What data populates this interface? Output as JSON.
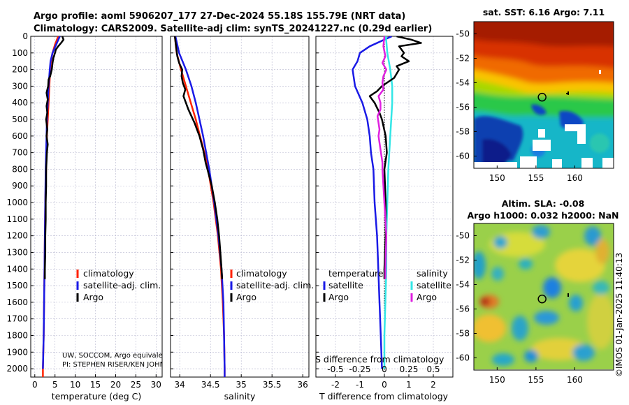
{
  "header": {
    "line1": "Argo profile: aoml 5906207_177 27-Dec-2024 55.18S 155.79E (NRT data)",
    "line2": "Climatology: CARS2009. Satellite-adj clim: synTS_20241227.nc (0.29d earlier)"
  },
  "colors": {
    "climatology": "#ff2200",
    "satellite": "#1a1ae6",
    "argo": "#000000",
    "sal_satellite": "#33e6e6",
    "sal_argo": "#e020e0",
    "grid": "#b8b8d0"
  },
  "chart_data": [
    {
      "type": "line",
      "name": "temperature-profile",
      "xlabel": "temperature (deg C)",
      "ylabel": "",
      "xlim": [
        -1,
        31.5
      ],
      "ylim": [
        2050,
        0
      ],
      "x_ticks": [
        0,
        5,
        10,
        15,
        20,
        25,
        30
      ],
      "x_tick_labels": [
        "0",
        "5",
        "10",
        "15",
        "20",
        "25",
        "30"
      ],
      "y_ticks": [
        0,
        100,
        200,
        300,
        400,
        500,
        600,
        700,
        800,
        900,
        1000,
        1100,
        1200,
        1300,
        1400,
        1500,
        1600,
        1700,
        1800,
        1900,
        2000
      ],
      "y_tick_labels": [
        "0",
        "100",
        "200",
        "300",
        "400",
        "500",
        "600",
        "700",
        "800",
        "900",
        "1000",
        "1100",
        "1200",
        "1300",
        "1400",
        "1500",
        "1600",
        "1700",
        "1800",
        "1900",
        "2000"
      ],
      "legend": [
        "climatology",
        "satellite-adj. clim.",
        "Argo"
      ],
      "note": [
        "UW, SOCCOM, Argo equivale",
        "PI: STEPHEN RISER/KEN JOHN"
      ],
      "series": [
        {
          "name": "climatology",
          "depth": [
            0,
            50,
            100,
            150,
            200,
            300,
            400,
            500,
            600,
            700,
            800,
            1000,
            1200,
            1400,
            1600,
            1800,
            2000,
            2050
          ],
          "values": [
            5.8,
            5.0,
            4.4,
            4.0,
            3.8,
            3.6,
            3.4,
            3.2,
            3.0,
            2.9,
            2.8,
            2.6,
            2.5,
            2.4,
            2.3,
            2.2,
            2.0,
            2.0
          ]
        },
        {
          "name": "satellite-adj. clim.",
          "depth": [
            0,
            50,
            100,
            150,
            200,
            300,
            400,
            500,
            600,
            700,
            800,
            1000,
            1200,
            1400,
            1600,
            1800,
            2000
          ],
          "values": [
            6.2,
            5.3,
            4.4,
            3.9,
            3.7,
            3.4,
            3.2,
            3.0,
            2.9,
            2.8,
            2.7,
            2.6,
            2.5,
            2.4,
            2.3,
            2.2,
            2.0
          ]
        },
        {
          "name": "Argo",
          "depth": [
            0,
            20,
            40,
            60,
            80,
            100,
            130,
            160,
            200,
            240,
            260,
            300,
            340,
            380,
            420,
            460,
            500,
            560,
            600,
            650,
            700,
            750,
            800,
            900,
            1000,
            1100,
            1200,
            1300,
            1400,
            1460
          ],
          "values": [
            6.8,
            7.1,
            6.5,
            5.8,
            5.2,
            5.0,
            4.6,
            4.4,
            4.2,
            3.8,
            3.4,
            3.3,
            2.9,
            3.2,
            2.9,
            3.1,
            2.8,
            3.1,
            2.9,
            3.2,
            3.0,
            2.9,
            2.8,
            2.8,
            2.7,
            2.7,
            2.6,
            2.6,
            2.5,
            2.5
          ]
        }
      ]
    },
    {
      "type": "line",
      "name": "salinity-profile",
      "xlabel": "salinity",
      "xlim": [
        33.85,
        36.1
      ],
      "ylim": [
        2050,
        0
      ],
      "x_ticks": [
        34,
        34.5,
        35,
        35.5,
        36
      ],
      "x_tick_labels": [
        "34",
        "34.5",
        "35",
        "35.5",
        "36"
      ],
      "legend": [
        "climatology",
        "satellite-adj. clim.",
        "Argo"
      ],
      "series": [
        {
          "name": "climatology",
          "depth": [
            0,
            100,
            200,
            300,
            400,
            500,
            600,
            700,
            800,
            1000,
            1200,
            1400,
            1600,
            1800,
            2000,
            2050
          ],
          "values": [
            33.92,
            33.95,
            34.02,
            34.1,
            34.18,
            34.26,
            34.33,
            34.4,
            34.46,
            34.55,
            34.62,
            34.67,
            34.7,
            34.72,
            34.73,
            34.73
          ]
        },
        {
          "name": "satellite-adj. clim.",
          "depth": [
            0,
            100,
            200,
            300,
            400,
            500,
            600,
            700,
            800,
            1000,
            1200,
            1400,
            1600,
            1800,
            2000,
            2050
          ],
          "values": [
            33.93,
            33.99,
            34.1,
            34.19,
            34.26,
            34.32,
            34.38,
            34.43,
            34.48,
            34.56,
            34.63,
            34.68,
            34.71,
            34.72,
            34.73,
            34.73
          ]
        },
        {
          "name": "Argo",
          "depth": [
            0,
            60,
            120,
            160,
            200,
            240,
            280,
            320,
            360,
            400,
            440,
            480,
            520,
            560,
            600,
            640,
            680,
            720,
            760,
            800,
            900,
            1000,
            1100,
            1200,
            1300,
            1400,
            1460
          ],
          "values": [
            33.92,
            33.94,
            33.96,
            33.99,
            34.04,
            34.03,
            34.05,
            34.09,
            34.06,
            34.1,
            34.14,
            34.19,
            34.24,
            34.28,
            34.32,
            34.35,
            34.38,
            34.4,
            34.42,
            34.45,
            34.52,
            34.57,
            34.61,
            34.64,
            34.66,
            34.68,
            34.69
          ]
        }
      ]
    },
    {
      "type": "line",
      "name": "difference-from-climatology",
      "xlabel": "T difference from climatology",
      "xlabel2": "S difference from climatology",
      "xlim": [
        -2.8,
        2.8
      ],
      "ylim": [
        2050,
        0
      ],
      "x_ticks": [
        -2,
        -1,
        0,
        1,
        2
      ],
      "x_tick_labels": [
        "-2",
        "-1",
        "0",
        "1",
        "2"
      ],
      "x2_tick_labels": [
        "-0.5",
        "-0.25",
        "0",
        "0.25",
        "0.5"
      ],
      "legend_temperature": {
        "heading": "temperature",
        "items": [
          "satellite",
          "Argo"
        ]
      },
      "legend_salinity": {
        "heading": "salinity",
        "items": [
          "satellite",
          "Argo"
        ]
      },
      "series": [
        {
          "name": "temperature satellite",
          "depth": [
            0,
            60,
            100,
            150,
            200,
            300,
            400,
            500,
            600,
            700,
            800,
            1000,
            1200,
            1400,
            1600,
            1800,
            2000
          ],
          "values": [
            0.3,
            -0.6,
            -1.0,
            -1.1,
            -1.3,
            -1.2,
            -0.9,
            -0.7,
            -0.6,
            -0.55,
            -0.45,
            -0.4,
            -0.3,
            -0.25,
            -0.2,
            -0.15,
            -0.1
          ]
        },
        {
          "name": "temperature Argo",
          "depth": [
            0,
            20,
            40,
            60,
            100,
            120,
            150,
            180,
            200,
            250,
            300,
            330,
            360,
            400,
            430,
            460,
            500,
            600,
            700,
            800,
            1000,
            1200,
            1400,
            1460
          ],
          "values": [
            0.5,
            1.1,
            1.5,
            0.6,
            0.8,
            0.7,
            1.0,
            0.5,
            0.6,
            0.4,
            -0.1,
            -0.3,
            -0.6,
            -0.4,
            -0.3,
            -0.2,
            -0.1,
            0.05,
            0.1,
            0.0,
            0.05,
            0.05,
            0.0,
            0.0
          ]
        },
        {
          "name": "salinity satellite",
          "depth": [
            0,
            100,
            200,
            300,
            400,
            500,
            600,
            700,
            800,
            1000,
            1200,
            1400,
            1600,
            1800,
            2000
          ],
          "values": [
            0.015,
            0.03,
            0.06,
            0.08,
            0.08,
            0.07,
            0.06,
            0.05,
            0.04,
            0.03,
            0.02,
            0.02,
            0.01,
            0.0,
            0.0
          ]
        },
        {
          "name": "salinity Argo",
          "depth": [
            0,
            60,
            120,
            160,
            200,
            240,
            280,
            320,
            360,
            400,
            440,
            480,
            520,
            560,
            600,
            640,
            680,
            720,
            760,
            800,
            900,
            1000,
            1200,
            1400,
            1460
          ],
          "values": [
            0.0,
            -0.01,
            0.01,
            -0.02,
            0.02,
            -0.01,
            -0.02,
            -0.01,
            -0.06,
            -0.04,
            -0.04,
            -0.07,
            -0.06,
            -0.05,
            -0.06,
            -0.05,
            -0.04,
            -0.03,
            -0.02,
            -0.02,
            -0.01,
            0.0,
            0.02,
            0.01,
            0.01
          ]
        }
      ]
    },
    {
      "type": "heatmap",
      "name": "sst-map",
      "title": "sat. SST: 6.16 Argo: 7.11",
      "xlim": [
        147,
        165
      ],
      "ylim": [
        -61,
        -49
      ],
      "x_ticks": [
        150,
        155,
        160
      ],
      "x_tick_labels": [
        "150",
        "155",
        "160"
      ],
      "y_ticks": [
        -50,
        -52,
        -54,
        -56,
        -58,
        -60
      ],
      "y_tick_labels": [
        "-50",
        "-52",
        "-54",
        "-56",
        "-58",
        "-60"
      ],
      "float_position": {
        "lon": 155.79,
        "lat": -55.18
      }
    },
    {
      "type": "heatmap",
      "name": "sla-map",
      "title1": "Altim. SLA: -0.08",
      "title2": "Argo h1000: 0.032 h2000: NaN",
      "xlim": [
        147,
        165
      ],
      "ylim": [
        -61,
        -49
      ],
      "x_ticks": [
        150,
        155,
        160
      ],
      "x_tick_labels": [
        "150",
        "155",
        "160"
      ],
      "y_ticks": [
        -50,
        -52,
        -54,
        -56,
        -58,
        -60
      ],
      "y_tick_labels": [
        "-50",
        "-52",
        "-54",
        "-56",
        "-58",
        "-60"
      ],
      "float_position": {
        "lon": 155.79,
        "lat": -55.18
      }
    }
  ],
  "footer": {
    "credit": "©IMOS 01-Jan-2025 11:40:13"
  }
}
